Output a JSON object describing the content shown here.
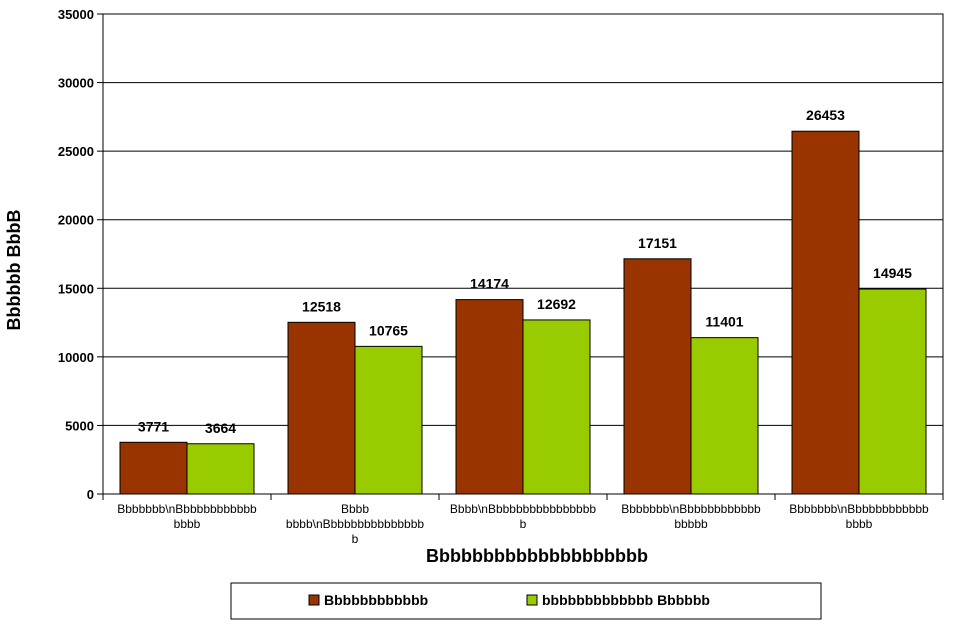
{
  "chart_data": {
    "type": "bar",
    "ylabel": "Bbbbbb BbbB",
    "xlabel": "Bbbbbbbbbbbbbbbbbbbb",
    "ylim": [
      0,
      35000
    ],
    "yticks": [
      0,
      5000,
      10000,
      15000,
      20000,
      25000,
      30000,
      35000
    ],
    "grid": true,
    "legend_position": "bottom",
    "categories": [
      [
        "Bbbbbbb\\nBbbbbbbbbbbb",
        "bbbb"
      ],
      [
        "Bbbb",
        "bbbb\\nBbbbbbbbbbbbbbb",
        "b"
      ],
      [
        "Bbbb\\nBbbbbbbbbbbbbbbb",
        "b"
      ],
      [
        "Bbbbbbb\\nBbbbbbbbbbbb",
        "bbbbb"
      ],
      [
        "Bbbbbbb\\nBbbbbbbbbbbb",
        "bbbb"
      ]
    ],
    "series": [
      {
        "name": "Bbbbbbbbbbbb",
        "color": "#993300",
        "values": [
          3771,
          12518,
          14174,
          17151,
          26453
        ]
      },
      {
        "name": "bbbbbbbbbbbbb Bbbbbb",
        "color": "#99CC00",
        "values": [
          3664,
          10765,
          12692,
          11401,
          14945
        ]
      }
    ]
  }
}
